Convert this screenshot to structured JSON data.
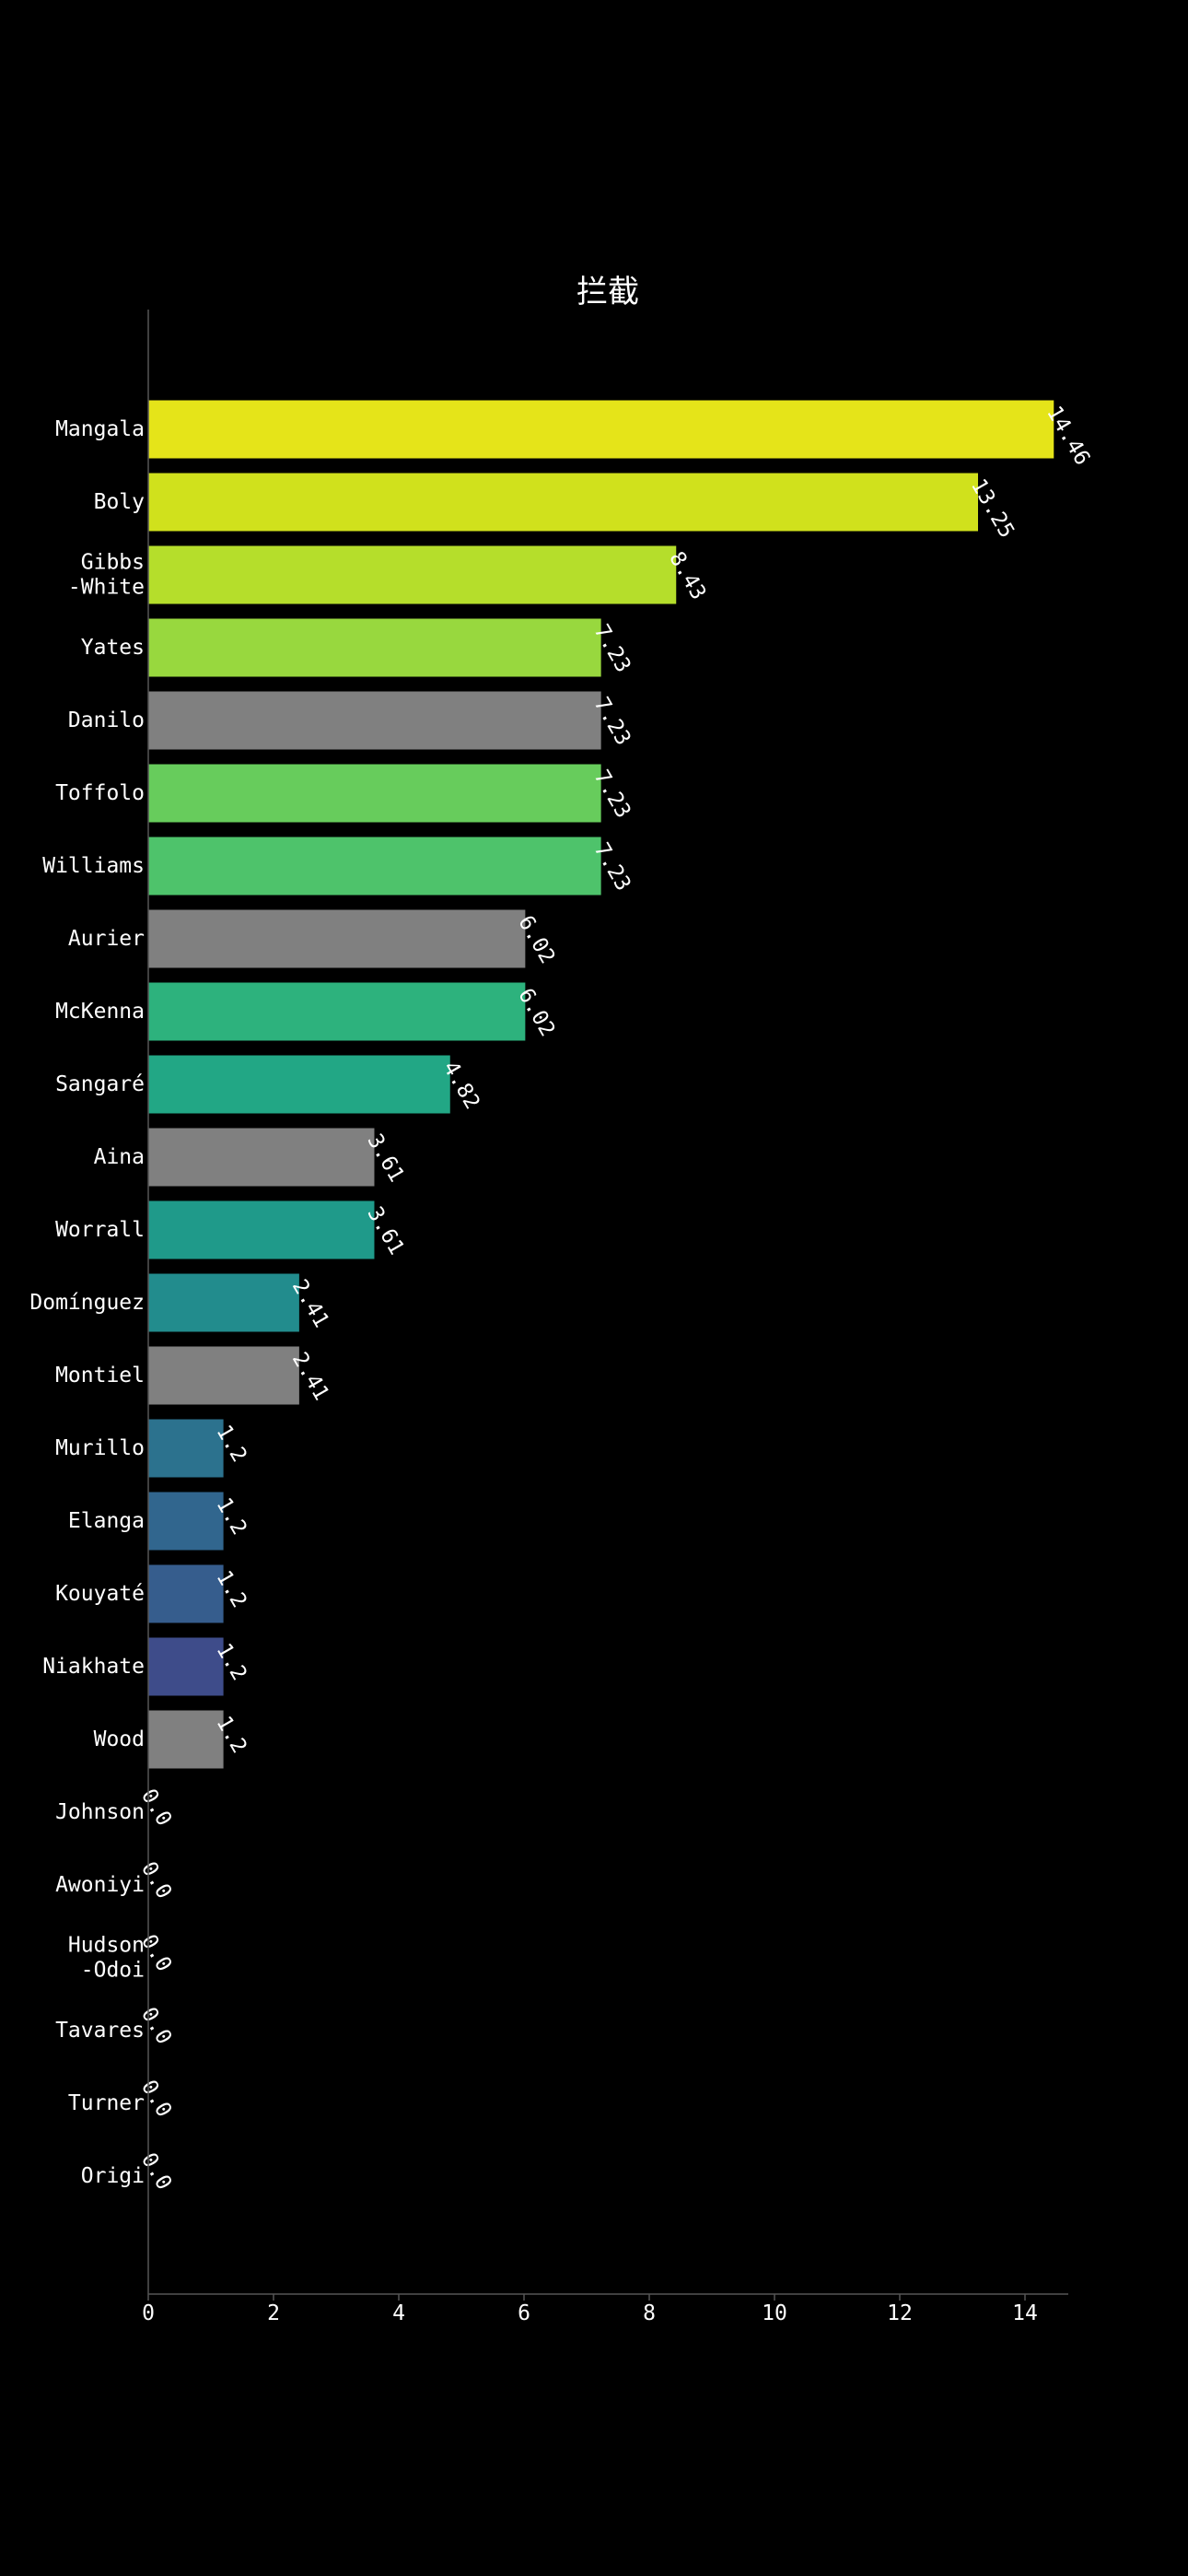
{
  "chart_data": {
    "type": "bar",
    "orientation": "horizontal",
    "title": "拦截",
    "xlabel": "",
    "ylabel": "",
    "xlim": [
      0,
      15.2
    ],
    "xticks": [
      "0",
      "2",
      "4",
      "6",
      "8",
      "10",
      "12",
      "14"
    ],
    "grid": false,
    "categories": [
      [
        "Mangala"
      ],
      [
        "Boly"
      ],
      [
        "Gibbs",
        "-White"
      ],
      [
        "Yates"
      ],
      [
        "Danilo"
      ],
      [
        "Toffolo"
      ],
      [
        "Williams"
      ],
      [
        "Aurier"
      ],
      [
        "McKenna"
      ],
      [
        "Sangaré"
      ],
      [
        "Aina"
      ],
      [
        "Worrall"
      ],
      [
        "Domínguez"
      ],
      [
        "Montiel"
      ],
      [
        "Murillo"
      ],
      [
        "Elanga"
      ],
      [
        "Kouyaté"
      ],
      [
        "Niakhate"
      ],
      [
        "Wood"
      ],
      [
        "Johnson"
      ],
      [
        "Awoniyi"
      ],
      [
        "Hudson",
        "-Odoi"
      ],
      [
        "Tavares"
      ],
      [
        "Turner"
      ],
      [
        "Origi"
      ]
    ],
    "values": [
      14.46,
      13.25,
      8.43,
      7.23,
      7.23,
      7.23,
      7.23,
      6.02,
      6.02,
      4.82,
      3.61,
      3.61,
      2.41,
      2.41,
      1.2,
      1.2,
      1.2,
      1.2,
      1.2,
      0.0,
      0.0,
      0.0,
      0.0,
      0.0,
      0.0
    ],
    "value_labels": [
      "14.46",
      "13.25",
      "8.43",
      "7.23",
      "7.23",
      "7.23",
      "7.23",
      "6.02",
      "6.02",
      "4.82",
      "3.61",
      "3.61",
      "2.41",
      "2.41",
      "1.2",
      "1.2",
      "1.2",
      "1.2",
      "1.2",
      "0.0",
      "0.0",
      "0.0",
      "0.0",
      "0.0",
      "0.0"
    ],
    "colors": [
      "#e5e419",
      "#d0e11c",
      "#b5de2b",
      "#98d83e",
      "#808080",
      "#67cc5c",
      "#4ec36b",
      "#808080",
      "#2db27d",
      "#22a785",
      "#808080",
      "#1f9a8a",
      "#228c8d",
      "#808080",
      "#2c728e",
      "#31668e",
      "#365d8d",
      "#3e4c8a",
      "#808080",
      "#433e85",
      "#46327e",
      "#482475",
      "#48186a",
      "#481467",
      "#440154"
    ]
  }
}
